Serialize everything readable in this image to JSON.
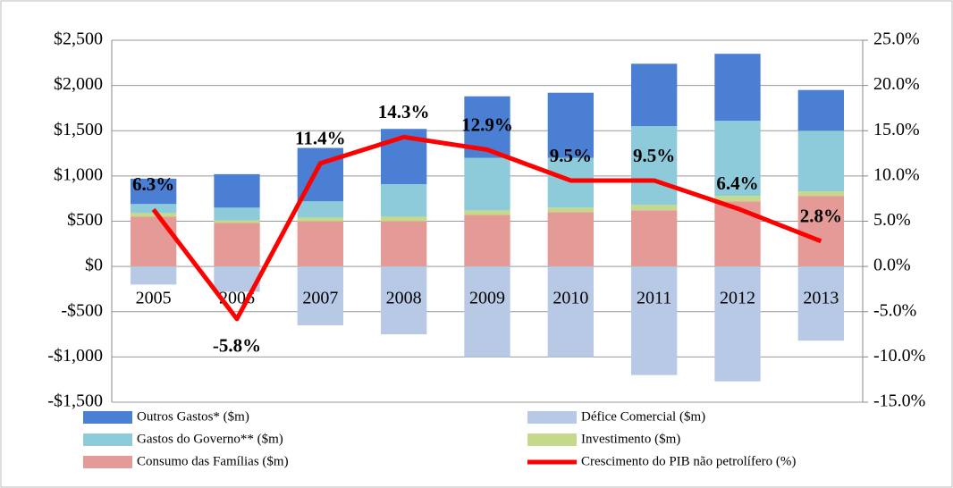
{
  "chart_data": {
    "type": "bar",
    "categories": [
      "2005",
      "2006",
      "2007",
      "2008",
      "2009",
      "2010",
      "2011",
      "2012",
      "2013"
    ],
    "series": [
      {
        "name": "Outros Gastos* ($m)",
        "color": "#4a7fd4",
        "values": [
          280,
          370,
          590,
          610,
          680,
          720,
          690,
          740,
          450
        ]
      },
      {
        "name": "Défice Comercial ($m)",
        "color": "#b8c9e6",
        "values": [
          -200,
          -280,
          -650,
          -750,
          -1000,
          -1000,
          -1200,
          -1270,
          -820
        ]
      },
      {
        "name": "Gastos do Governo** ($m)",
        "color": "#8dcbdb",
        "values": [
          100,
          140,
          180,
          360,
          580,
          550,
          870,
          830,
          670
        ]
      },
      {
        "name": "Investimento ($m)",
        "color": "#c5d98a",
        "values": [
          40,
          30,
          40,
          50,
          50,
          50,
          60,
          60,
          50
        ]
      },
      {
        "name": "Consumo das Famílias ($m)",
        "color": "#e49a96",
        "values": [
          550,
          480,
          500,
          500,
          570,
          600,
          620,
          720,
          780
        ]
      },
      {
        "name": "Crescimento do PIB não petrolífero (%)",
        "color": "#ff0000",
        "type": "line",
        "axis": "y2",
        "values": [
          6.3,
          -5.8,
          11.4,
          14.3,
          12.9,
          9.5,
          9.5,
          6.4,
          2.8
        ],
        "value_labels": [
          "6.3%",
          "-5.8%",
          "11.4%",
          "14.3%",
          "12.9%",
          "9.5%",
          "9.5%",
          "6.4%",
          "2.8%"
        ]
      }
    ],
    "ylim": [
      -1500,
      2500
    ],
    "yticks": [
      {
        "value": -1500,
        "label": "-$1,500"
      },
      {
        "value": -1000,
        "label": "-$1,000"
      },
      {
        "value": -500,
        "label": "-$500"
      },
      {
        "value": 0,
        "label": "$0"
      },
      {
        "value": 500,
        "label": "$500"
      },
      {
        "value": 1000,
        "label": "$1,000"
      },
      {
        "value": 1500,
        "label": "$1,500"
      },
      {
        "value": 2000,
        "label": "$2,000"
      },
      {
        "value": 2500,
        "label": "$2,500"
      }
    ],
    "y2lim": [
      -15,
      25
    ],
    "y2ticks": [
      {
        "value": -15,
        "label": "-15.0%"
      },
      {
        "value": -10,
        "label": "-10.0%"
      },
      {
        "value": -5,
        "label": "-5.0%"
      },
      {
        "value": 0,
        "label": "0.0%"
      },
      {
        "value": 5,
        "label": "5.0%"
      },
      {
        "value": 10,
        "label": "10.0%"
      },
      {
        "value": 15,
        "label": "15.0%"
      },
      {
        "value": 20,
        "label": "20.0%"
      },
      {
        "value": 25,
        "label": "25.0%"
      }
    ],
    "grid": true
  }
}
